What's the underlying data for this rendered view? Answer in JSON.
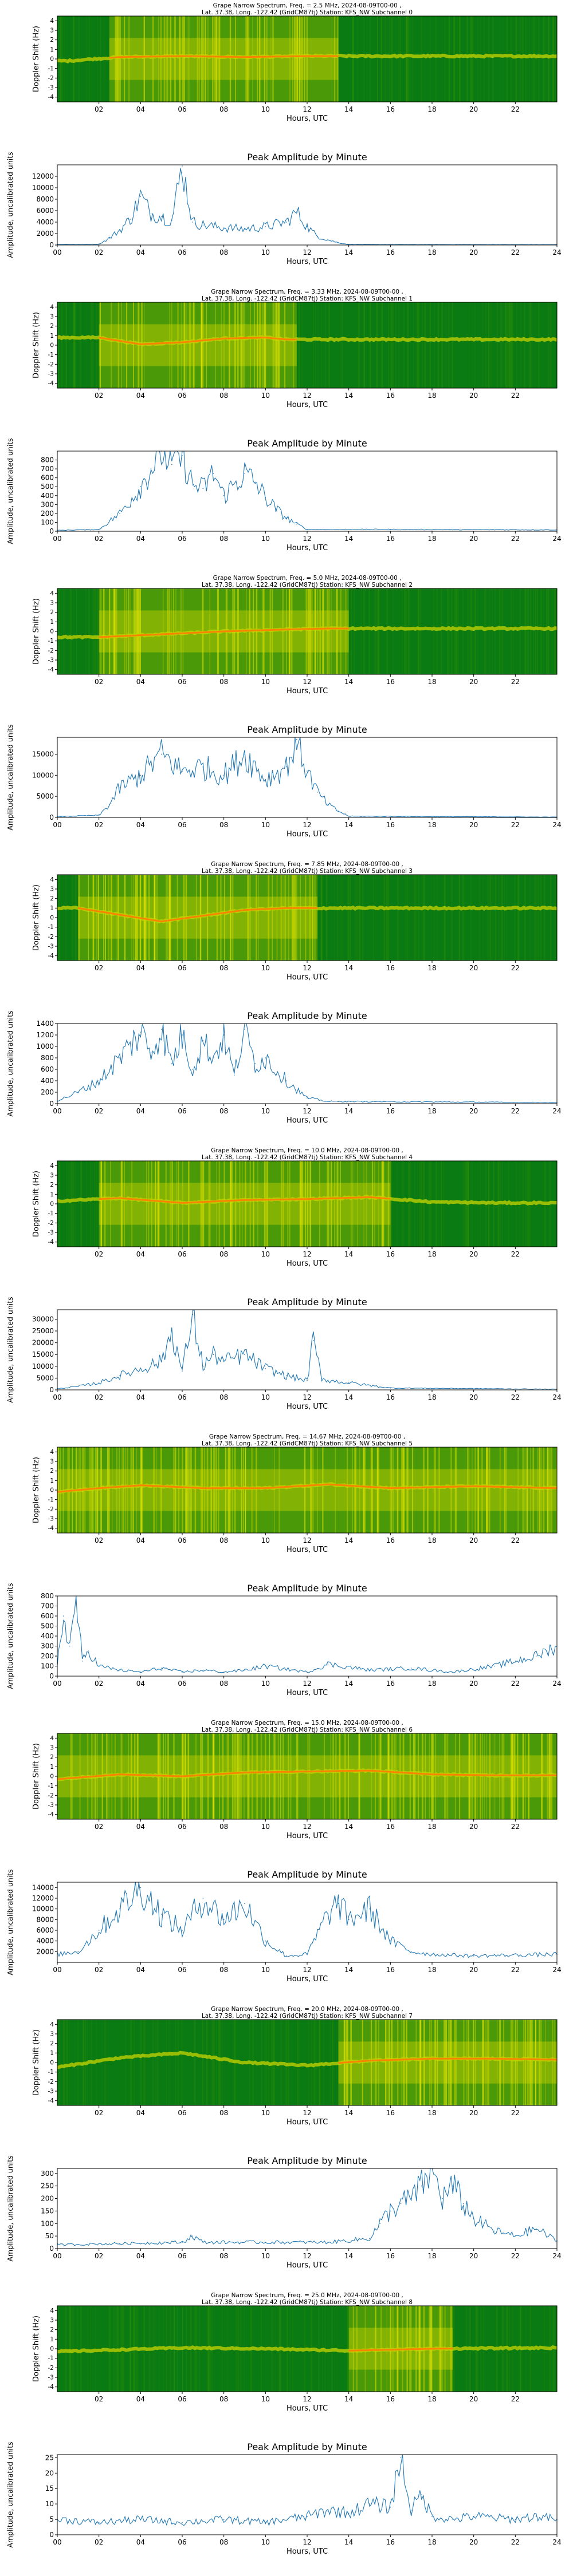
{
  "common": {
    "spec_title_line2": "Lat.  37.38, Long. -122.42 (GridCM87tj) Station: KFS_NW Subchannel",
    "spec_ylabel": "Doppler Shift (Hz)",
    "amp_title": "Peak Amplitude by Minute",
    "amp_ylabel": "Amplitude, uncalibrated units",
    "xlabel": "Hours, UTC",
    "spec_yticks": [
      "4",
      "3",
      "2",
      "1",
      "0",
      "-1",
      "-2",
      "-3",
      "-4"
    ],
    "spec_xticks": [
      "02",
      "04",
      "06",
      "08",
      "10",
      "12",
      "14",
      "16",
      "18",
      "20",
      "22"
    ],
    "amp_xticks": [
      "00",
      "02",
      "04",
      "06",
      "08",
      "10",
      "12",
      "14",
      "16",
      "18",
      "20",
      "22",
      "24"
    ],
    "colors": {
      "line": "#1f77b4",
      "spec_bg": "#0a7a12",
      "spec_mid": "#c8d400",
      "spec_hot": "#ff7b00"
    }
  },
  "chart_data": [
    {
      "channel": 0,
      "type": "heatmap",
      "title": "Grape Narrow Spectrum, Freq. = 2.5 MHz, 2024-08-09T00-00 ,",
      "subchannel": "0",
      "ylim": [
        -4.5,
        4.5
      ],
      "xlim": [
        0,
        24
      ],
      "ridge": [
        [
          0.5,
          -0.2
        ],
        [
          3,
          0.2
        ],
        [
          6,
          0.3
        ],
        [
          9,
          0.2
        ],
        [
          12,
          0.3
        ],
        [
          13.5,
          0.3
        ]
      ],
      "active": [
        2.5,
        13.5
      ]
    },
    {
      "channel": 0,
      "type": "line",
      "title": "Peak Amplitude by Minute",
      "xlim": [
        0,
        24
      ],
      "ylim": [
        0,
        14000
      ],
      "yticks": [
        "0",
        "2000",
        "4000",
        "6000",
        "8000",
        "10000",
        "12000"
      ],
      "x": [
        0,
        2,
        2.5,
        3,
        3.5,
        4,
        4.5,
        5,
        5.5,
        6,
        6.5,
        7,
        8,
        9,
        10,
        11,
        11.5,
        12,
        12.5,
        13,
        13.5,
        14,
        16,
        24
      ],
      "values": [
        100,
        150,
        1200,
        2600,
        4500,
        8500,
        5500,
        5000,
        4300,
        13800,
        4000,
        3500,
        3000,
        2800,
        3200,
        4000,
        5800,
        3200,
        1500,
        900,
        400,
        100,
        80,
        60
      ]
    },
    {
      "channel": 1,
      "type": "heatmap",
      "title": "Grape Narrow Spectrum, Freq. = 3.33 MHz, 2024-08-09T00-00 ,",
      "subchannel": "1",
      "ylim": [
        -4.5,
        4.5
      ],
      "xlim": [
        0,
        24
      ],
      "ridge": [
        [
          2,
          0.8
        ],
        [
          4,
          0.1
        ],
        [
          6,
          0.3
        ],
        [
          8,
          0.7
        ],
        [
          10,
          0.8
        ],
        [
          11,
          0.6
        ]
      ],
      "active": [
        2,
        11.5
      ]
    },
    {
      "channel": 1,
      "type": "line",
      "title": "Peak Amplitude by Minute",
      "xlim": [
        0,
        24
      ],
      "ylim": [
        0,
        900
      ],
      "yticks": [
        "0",
        "100",
        "200",
        "300",
        "400",
        "500",
        "600",
        "700",
        "800"
      ],
      "x": [
        0,
        2,
        3,
        4,
        4.5,
        5,
        5.5,
        6,
        6.5,
        7,
        7.5,
        8,
        9,
        9.5,
        10,
        10.5,
        11,
        11.5,
        12,
        16,
        24
      ],
      "values": [
        10,
        20,
        200,
        500,
        700,
        900,
        750,
        850,
        520,
        480,
        650,
        400,
        650,
        550,
        380,
        250,
        150,
        80,
        20,
        20,
        15
      ]
    },
    {
      "channel": 2,
      "type": "heatmap",
      "title": "Grape Narrow Spectrum, Freq. = 5.0 MHz, 2024-08-09T00-00 ,",
      "subchannel": "2",
      "ylim": [
        -4.5,
        4.5
      ],
      "xlim": [
        0,
        24
      ],
      "ridge": [
        [
          2,
          -0.6
        ],
        [
          5,
          -0.3
        ],
        [
          8,
          0.0
        ],
        [
          11,
          0.2
        ],
        [
          13,
          0.3
        ],
        [
          24,
          0.3
        ]
      ],
      "active": [
        2,
        14
      ]
    },
    {
      "channel": 2,
      "type": "line",
      "title": "Peak Amplitude by Minute",
      "xlim": [
        0,
        24
      ],
      "ylim": [
        0,
        19000
      ],
      "yticks": [
        "0",
        "5000",
        "10000",
        "15000"
      ],
      "x": [
        0,
        2,
        2.5,
        3,
        4,
        5,
        6,
        7,
        8,
        9,
        10,
        11,
        11.5,
        12,
        12.5,
        13,
        13.5,
        14,
        24
      ],
      "values": [
        200,
        500,
        3000,
        7000,
        10000,
        15000,
        11000,
        12000,
        10000,
        15000,
        9000,
        12000,
        18500,
        11000,
        6000,
        3000,
        1500,
        300,
        100
      ]
    },
    {
      "channel": 3,
      "type": "heatmap",
      "title": "Grape Narrow Spectrum, Freq. = 7.85 MHz, 2024-08-09T00-00 ,",
      "subchannel": "3",
      "ylim": [
        -4.5,
        4.5
      ],
      "xlim": [
        0,
        24
      ],
      "ridge": [
        [
          1,
          1.0
        ],
        [
          3,
          0.3
        ],
        [
          5,
          -0.4
        ],
        [
          7,
          0.2
        ],
        [
          9,
          0.8
        ],
        [
          11,
          1.0
        ]
      ],
      "active": [
        1,
        12.5
      ]
    },
    {
      "channel": 3,
      "type": "line",
      "title": "Peak Amplitude by Minute",
      "xlim": [
        0,
        24
      ],
      "ylim": [
        0,
        1400
      ],
      "yticks": [
        "0",
        "200",
        "400",
        "600",
        "800",
        "1000",
        "1200",
        "1400"
      ],
      "x": [
        0,
        1,
        2,
        3,
        4,
        4.5,
        5,
        5.5,
        6,
        6.5,
        7,
        7.5,
        8,
        8.5,
        9,
        9.5,
        10,
        11,
        12,
        13,
        24
      ],
      "values": [
        50,
        200,
        400,
        800,
        1250,
        900,
        1300,
        700,
        1200,
        600,
        1100,
        800,
        1200,
        500,
        1300,
        700,
        800,
        400,
        100,
        40,
        20
      ]
    },
    {
      "channel": 4,
      "type": "heatmap",
      "title": "Grape Narrow Spectrum, Freq. = 10.0 MHz, 2024-08-09T00-00 ,",
      "subchannel": "4",
      "ylim": [
        -4.5,
        4.5
      ],
      "xlim": [
        0,
        24
      ],
      "ridge": [
        [
          0,
          0.3
        ],
        [
          3,
          0.6
        ],
        [
          6,
          0.1
        ],
        [
          9,
          0.4
        ],
        [
          12,
          0.5
        ],
        [
          15,
          0.7
        ],
        [
          18,
          0.2
        ],
        [
          21,
          0.1
        ],
        [
          24,
          0.1
        ]
      ],
      "active": [
        2,
        16
      ]
    },
    {
      "channel": 4,
      "type": "line",
      "title": "Peak Amplitude by Minute",
      "xlim": [
        0,
        24
      ],
      "ylim": [
        0,
        34000
      ],
      "yticks": [
        "0",
        "5000",
        "10000",
        "15000",
        "20000",
        "25000",
        "30000"
      ],
      "x": [
        0,
        1,
        2,
        3,
        4,
        5,
        5.5,
        6,
        6.5,
        7,
        7.5,
        8,
        9,
        10,
        11,
        12,
        12.3,
        12.7,
        13,
        14,
        16,
        24
      ],
      "values": [
        500,
        1500,
        3000,
        6000,
        9000,
        12000,
        25000,
        8000,
        32000,
        10000,
        15000,
        12000,
        15000,
        9000,
        6000,
        4000,
        21000,
        5000,
        4000,
        3000,
        800,
        300
      ]
    },
    {
      "channel": 5,
      "type": "heatmap",
      "title": "Grape Narrow Spectrum, Freq. = 14.67 MHz, 2024-08-09T00-00 ,",
      "subchannel": "5",
      "ylim": [
        -4.5,
        4.5
      ],
      "xlim": [
        0,
        24
      ],
      "ridge": [
        [
          0,
          -0.2
        ],
        [
          2,
          0.2
        ],
        [
          4,
          0.5
        ],
        [
          7,
          0.2
        ],
        [
          10,
          0.2
        ],
        [
          13,
          0.6
        ],
        [
          16,
          0.2
        ],
        [
          20,
          0.4
        ],
        [
          24,
          0.2
        ]
      ],
      "active": [
        0,
        24
      ]
    },
    {
      "channel": 5,
      "type": "line",
      "title": "Peak Amplitude by Minute",
      "xlim": [
        0,
        24
      ],
      "ylim": [
        0,
        800
      ],
      "yticks": [
        "0",
        "100",
        "200",
        "300",
        "400",
        "500",
        "600",
        "700",
        "800"
      ],
      "x": [
        0,
        0.3,
        0.6,
        0.9,
        1.2,
        1.5,
        2,
        3,
        4,
        5,
        6,
        7,
        8,
        9,
        10,
        12,
        13,
        15,
        17,
        19,
        21,
        22,
        23,
        23.5,
        24
      ],
      "values": [
        100,
        600,
        300,
        800,
        150,
        250,
        100,
        60,
        40,
        80,
        40,
        60,
        40,
        60,
        100,
        40,
        120,
        60,
        80,
        40,
        100,
        150,
        200,
        250,
        300
      ]
    },
    {
      "channel": 6,
      "type": "heatmap",
      "title": "Grape Narrow Spectrum, Freq. = 15.0 MHz, 2024-08-09T00-00 ,",
      "subchannel": "6",
      "ylim": [
        -4.5,
        4.5
      ],
      "xlim": [
        0,
        24
      ],
      "ridge": [
        [
          0,
          -0.3
        ],
        [
          3,
          0.2
        ],
        [
          6,
          0.0
        ],
        [
          9,
          0.4
        ],
        [
          12,
          0.5
        ],
        [
          15,
          0.6
        ],
        [
          18,
          0.2
        ],
        [
          21,
          0.1
        ],
        [
          24,
          0.1
        ]
      ],
      "active": [
        0,
        24
      ]
    },
    {
      "channel": 6,
      "type": "line",
      "title": "Peak Amplitude by Minute",
      "xlim": [
        0,
        24
      ],
      "ylim": [
        0,
        15000
      ],
      "yticks": [
        "2000",
        "4000",
        "6000",
        "8000",
        "10000",
        "12000",
        "14000"
      ],
      "x": [
        0,
        1,
        2,
        3,
        4,
        5,
        6,
        7,
        8,
        9,
        10,
        11,
        12,
        13,
        13.5,
        14,
        15,
        16,
        17,
        18,
        20,
        24
      ],
      "values": [
        1500,
        2000,
        6000,
        10000,
        14000,
        9000,
        6000,
        12000,
        8000,
        11000,
        4000,
        1200,
        1500,
        9000,
        11000,
        8000,
        10000,
        4000,
        2000,
        1500,
        1200,
        1500
      ]
    },
    {
      "channel": 7,
      "type": "heatmap",
      "title": "Grape Narrow Spectrum, Freq. = 20.0 MHz, 2024-08-09T00-00 ,",
      "subchannel": "7",
      "ylim": [
        -4.5,
        4.5
      ],
      "xlim": [
        0,
        24
      ],
      "ridge": [
        [
          0,
          -0.5
        ],
        [
          3,
          0.5
        ],
        [
          6,
          1.0
        ],
        [
          9,
          0.0
        ],
        [
          12,
          -0.3
        ],
        [
          15,
          0.2
        ],
        [
          18,
          0.4
        ],
        [
          21,
          0.4
        ],
        [
          24,
          0.3
        ]
      ],
      "active": [
        13.5,
        24
      ]
    },
    {
      "channel": 7,
      "type": "line",
      "title": "Peak Amplitude by Minute",
      "xlim": [
        0,
        24
      ],
      "ylim": [
        0,
        320
      ],
      "yticks": [
        "0",
        "50",
        "100",
        "150",
        "200",
        "250",
        "300"
      ],
      "x": [
        0,
        3,
        6,
        6.5,
        7,
        10,
        13,
        15,
        15.5,
        16,
        16.5,
        17,
        17.5,
        18,
        18.5,
        19,
        19.5,
        20,
        21,
        22,
        23,
        24
      ],
      "values": [
        15,
        20,
        25,
        50,
        25,
        25,
        25,
        40,
        100,
        150,
        180,
        200,
        250,
        320,
        200,
        250,
        180,
        120,
        70,
        50,
        80,
        30
      ]
    },
    {
      "channel": 8,
      "type": "heatmap",
      "title": "Grape Narrow Spectrum, Freq. = 25.0 MHz, 2024-08-09T00-00 ,",
      "subchannel": "8",
      "ylim": [
        -4.5,
        4.5
      ],
      "xlim": [
        0,
        24
      ],
      "ridge": [
        [
          0,
          -0.3
        ],
        [
          3,
          -0.1
        ],
        [
          6,
          0.1
        ],
        [
          10,
          0.0
        ],
        [
          14,
          -0.2
        ],
        [
          18,
          0.0
        ],
        [
          24,
          0.1
        ]
      ],
      "active": [
        14,
        19
      ]
    },
    {
      "channel": 8,
      "type": "line",
      "title": "Peak Amplitude by Minute",
      "xlim": [
        0,
        24
      ],
      "ylim": [
        0,
        26
      ],
      "yticks": [
        "0",
        "5",
        "10",
        "15",
        "20",
        "25"
      ],
      "x": [
        0,
        2,
        4,
        6,
        8,
        10,
        12,
        13,
        14,
        15,
        16,
        16.5,
        17,
        17.5,
        18,
        19,
        20,
        22,
        23,
        24
      ],
      "values": [
        5,
        4,
        5,
        4,
        5,
        4,
        6,
        8,
        7,
        10,
        9,
        25,
        8,
        13,
        6,
        5,
        6,
        5,
        6,
        5
      ]
    }
  ]
}
